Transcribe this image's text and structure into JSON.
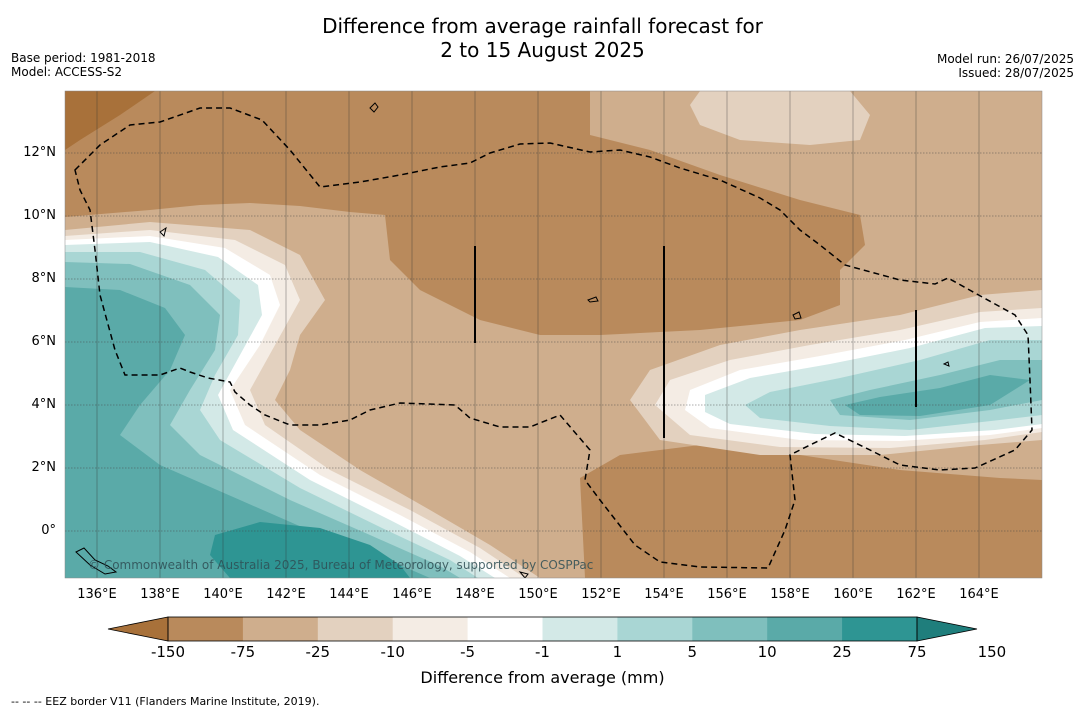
{
  "header": {
    "title_line1": "Difference from average rainfall forecast for",
    "title_line2": "2 to 15 August 2025",
    "base_period": "Base period: 1981-2018",
    "model": "Model: ACCESS-S2",
    "model_run": "Model run: 26/07/2025",
    "issued": "Issued: 28/07/2025"
  },
  "map": {
    "lon_labels": [
      "136°E",
      "138°E",
      "140°E",
      "142°E",
      "144°E",
      "146°E",
      "148°E",
      "150°E",
      "152°E",
      "154°E",
      "156°E",
      "158°E",
      "160°E",
      "162°E",
      "164°E"
    ],
    "lat_labels": [
      "12°N",
      "10°N",
      "8°N",
      "6°N",
      "4°N",
      "2°N",
      "0°"
    ],
    "copyright": "© Commonwealth of Australia 2025, Bureau of Meteorology, supported by COSPPac"
  },
  "legend": {
    "tick_labels": [
      "-150",
      "-75",
      "-25",
      "-10",
      "-5",
      "-1",
      "1",
      "5",
      "10",
      "25",
      "75",
      "150"
    ],
    "title": "Difference from average (mm)",
    "colors": [
      "#a8713a",
      "#b98a5c",
      "#cfae8d",
      "#e3d1bf",
      "#f4ece4",
      "#ffffff",
      "#d3e9e7",
      "#a9d6d4",
      "#7fbfbd",
      "#5aaaa8",
      "#2e9593",
      "#1f7e7c"
    ]
  },
  "footer": {
    "eez_note": "--  --  -- EEZ border V11 (Flanders Marine Institute, 2019)."
  }
}
